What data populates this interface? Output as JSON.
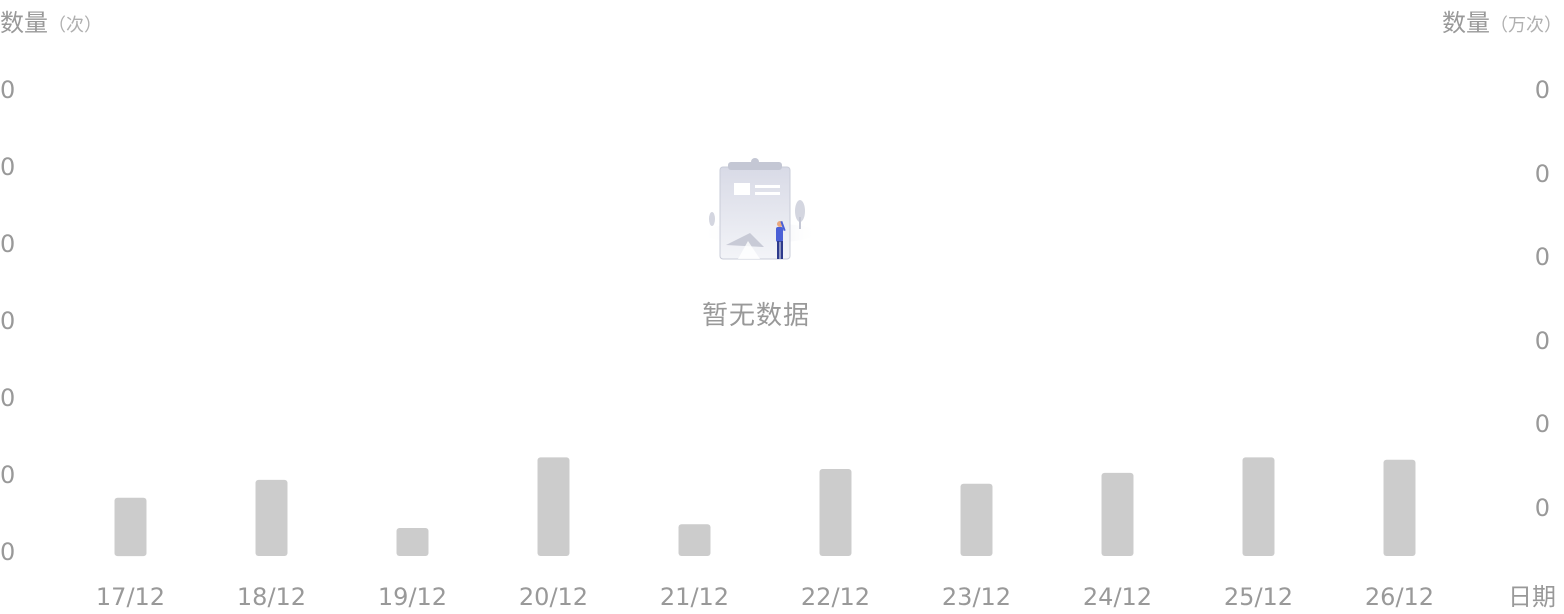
{
  "chart_data": {
    "type": "bar",
    "categories": [
      "17/12",
      "18/12",
      "19/12",
      "20/12",
      "21/12",
      "22/12",
      "23/12",
      "24/12",
      "25/12",
      "26/12"
    ],
    "series": [
      {
        "values": [
          0.75,
          0.98,
          0.36,
          1.27,
          0.41,
          1.12,
          0.93,
          1.07,
          1.27,
          1.24
        ]
      }
    ],
    "y_left": {
      "name": "数量",
      "unit": "（次）",
      "ticks": [
        "0",
        "0",
        "0",
        "0",
        "0",
        "0",
        "0"
      ]
    },
    "y_right": {
      "name": "数量",
      "unit": "（万次）",
      "ticks": [
        "0",
        "0",
        "0",
        "0",
        "0",
        "0"
      ]
    },
    "xlabel": "日期",
    "ylim": [
      0,
      6
    ],
    "grid": false,
    "legend": "none",
    "bar_color": "#cccccc"
  },
  "empty_state": {
    "text": "暂无数据",
    "icon": "empty-clipboard-illustration-icon"
  },
  "colors": {
    "text": "#999999",
    "bar": "#cccccc",
    "accent": "#4a5fd6"
  }
}
